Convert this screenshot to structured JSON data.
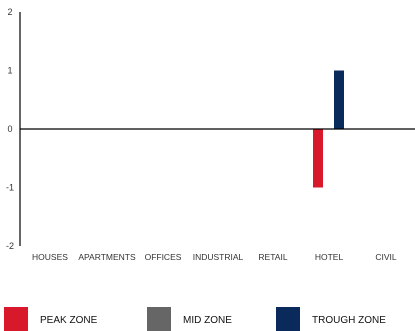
{
  "chart_data": {
    "type": "bar",
    "categories": [
      "HOUSES",
      "APARTMENTS",
      "OFFICES",
      "INDUSTRIAL",
      "RETAIL",
      "HOTEL",
      "CIVIL"
    ],
    "series": [
      {
        "name": "PEAK ZONE",
        "color": "#d7192b",
        "values": [
          0,
          0,
          0,
          0,
          0,
          -1,
          0
        ]
      },
      {
        "name": "MID ZONE",
        "color": "#666666",
        "values": [
          0,
          0,
          0,
          0,
          0,
          0,
          0
        ]
      },
      {
        "name": "TROUGH ZONE",
        "color": "#0b2a5c",
        "values": [
          0,
          0,
          0,
          0,
          0,
          1,
          0
        ]
      }
    ],
    "ylim": [
      -2,
      2
    ],
    "yticks": [
      "-2",
      "-1",
      "0",
      "1",
      "2"
    ],
    "xlabel": "",
    "ylabel": "",
    "title": "",
    "grid": false,
    "legend_position": "bottom"
  }
}
